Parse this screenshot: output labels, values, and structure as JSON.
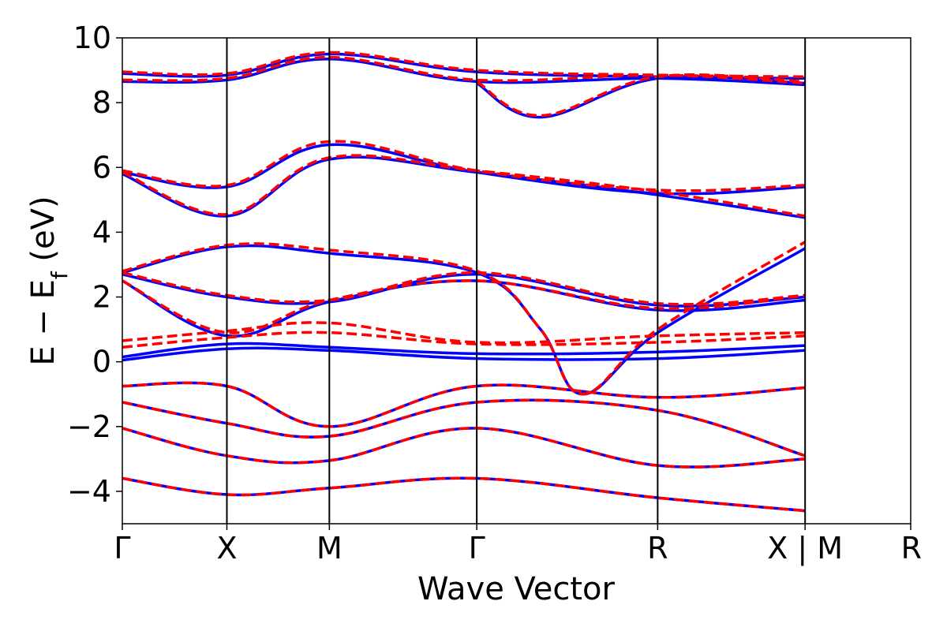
{
  "chart_data": {
    "type": "line",
    "xlabel": "Wave Vector",
    "ylabel_main": "E − E",
    "ylabel_sub": "f",
    "ylabel_unit": " (eV)",
    "ylim": [
      -5,
      10
    ],
    "yticks": [
      {
        "v": -4,
        "label": "−4"
      },
      {
        "v": -2,
        "label": "−2"
      },
      {
        "v": 0,
        "label": "0"
      },
      {
        "v": 2,
        "label": "2"
      },
      {
        "v": 4,
        "label": "4"
      },
      {
        "v": 6,
        "label": "6"
      },
      {
        "v": 8,
        "label": "8"
      },
      {
        "v": 10,
        "label": "10"
      }
    ],
    "xlim": [
      0,
      7.54
    ],
    "kpoints": [
      {
        "x": 0,
        "label": "Γ"
      },
      {
        "x": 1.0,
        "label": "X"
      },
      {
        "x": 1.98,
        "label": "M"
      },
      {
        "x": 3.39,
        "label": "Γ"
      },
      {
        "x": 5.12,
        "label": "R"
      },
      {
        "x": 6.53,
        "label": "X | M"
      },
      {
        "x": 7.54,
        "label": "R"
      }
    ],
    "segment_breaks": [
      6.53
    ],
    "grid": false,
    "legend": "none",
    "series": [
      {
        "color": "#0000ff",
        "style": "solid",
        "bands": [
          [
            [
              0,
              -0.75
            ],
            [
              1.0,
              -0.75
            ],
            [
              1.98,
              -2.0
            ],
            [
              3.39,
              -0.75
            ],
            [
              5.12,
              -1.1
            ],
            [
              6.53,
              -0.8
            ]
          ],
          [
            [
              0,
              -1.25
            ],
            [
              1.0,
              -1.9
            ],
            [
              1.98,
              -2.3
            ],
            [
              3.39,
              -1.25
            ],
            [
              5.12,
              -1.5
            ],
            [
              6.53,
              -2.9
            ]
          ],
          [
            [
              0,
              -2.05
            ],
            [
              1.0,
              -2.9
            ],
            [
              1.98,
              -3.05
            ],
            [
              3.39,
              -2.05
            ],
            [
              5.12,
              -3.2
            ],
            [
              6.53,
              -3.0
            ]
          ],
          [
            [
              0,
              -3.6
            ],
            [
              1.0,
              -4.1
            ],
            [
              1.98,
              -3.9
            ],
            [
              3.39,
              -3.6
            ],
            [
              5.12,
              -4.2
            ],
            [
              6.53,
              -4.6
            ]
          ],
          [
            [
              0,
              0.05
            ],
            [
              1.0,
              0.4
            ],
            [
              1.98,
              0.35
            ],
            [
              3.39,
              0.1
            ],
            [
              5.12,
              0.1
            ],
            [
              6.53,
              0.35
            ]
          ],
          [
            [
              0,
              0.15
            ],
            [
              1.0,
              0.55
            ],
            [
              1.98,
              0.45
            ],
            [
              3.39,
              0.25
            ],
            [
              5.12,
              0.3
            ],
            [
              6.53,
              0.5
            ]
          ],
          [
            [
              0,
              2.5
            ],
            [
              1.0,
              0.8
            ],
            [
              1.98,
              1.85
            ],
            [
              3.39,
              2.5
            ],
            [
              5.12,
              1.6
            ],
            [
              6.53,
              1.9
            ]
          ],
          [
            [
              0,
              2.7
            ],
            [
              1.0,
              2.0
            ],
            [
              1.98,
              1.85
            ],
            [
              3.39,
              2.7
            ],
            [
              5.12,
              1.75
            ],
            [
              6.53,
              2.0
            ]
          ],
          [
            [
              0,
              2.75
            ],
            [
              1.0,
              3.55
            ],
            [
              1.98,
              3.35
            ],
            [
              3.39,
              2.75
            ],
            [
              4.0,
              1.0
            ],
            [
              4.4,
              -1.0
            ],
            [
              5.12,
              0.9
            ],
            [
              6.53,
              3.5
            ]
          ],
          [
            [
              0,
              5.8
            ],
            [
              1.0,
              4.5
            ],
            [
              1.98,
              6.25
            ],
            [
              3.39,
              5.85
            ],
            [
              5.12,
              5.15
            ],
            [
              6.53,
              4.45
            ]
          ],
          [
            [
              0,
              5.85
            ],
            [
              1.0,
              5.4
            ],
            [
              1.98,
              6.7
            ],
            [
              3.39,
              5.85
            ],
            [
              5.12,
              5.2
            ],
            [
              6.53,
              5.4
            ]
          ],
          [
            [
              0,
              8.65
            ],
            [
              1.0,
              8.7
            ],
            [
              1.98,
              9.35
            ],
            [
              3.39,
              8.65
            ],
            [
              5.12,
              8.75
            ],
            [
              6.53,
              8.55
            ]
          ],
          [
            [
              0,
              8.9
            ],
            [
              1.0,
              8.85
            ],
            [
              1.98,
              9.5
            ],
            [
              3.39,
              8.95
            ],
            [
              5.12,
              8.8
            ],
            [
              6.53,
              8.75
            ]
          ],
          [
            [
              3.39,
              8.6
            ],
            [
              4.0,
              7.55
            ],
            [
              5.12,
              8.75
            ],
            [
              6.53,
              8.6
            ]
          ]
        ]
      },
      {
        "color": "#ff0000",
        "style": "dashed",
        "bands": [
          [
            [
              0,
              -0.75
            ],
            [
              1.0,
              -0.75
            ],
            [
              1.98,
              -2.0
            ],
            [
              3.39,
              -0.75
            ],
            [
              5.12,
              -1.1
            ],
            [
              6.53,
              -0.8
            ]
          ],
          [
            [
              0,
              -1.25
            ],
            [
              1.0,
              -1.9
            ],
            [
              1.98,
              -2.3
            ],
            [
              3.39,
              -1.25
            ],
            [
              5.12,
              -1.5
            ],
            [
              6.53,
              -2.9
            ]
          ],
          [
            [
              0,
              -2.05
            ],
            [
              1.0,
              -2.9
            ],
            [
              1.98,
              -3.05
            ],
            [
              3.39,
              -2.05
            ],
            [
              5.12,
              -3.2
            ],
            [
              6.53,
              -3.0
            ]
          ],
          [
            [
              0,
              -3.6
            ],
            [
              1.0,
              -4.1
            ],
            [
              1.98,
              -3.9
            ],
            [
              3.39,
              -3.6
            ],
            [
              5.12,
              -4.2
            ],
            [
              6.53,
              -4.6
            ]
          ],
          [
            [
              0,
              0.45
            ],
            [
              1.0,
              0.75
            ],
            [
              1.98,
              0.9
            ],
            [
              3.39,
              0.55
            ],
            [
              5.12,
              0.6
            ],
            [
              6.53,
              0.8
            ]
          ],
          [
            [
              0,
              0.65
            ],
            [
              1.0,
              0.95
            ],
            [
              1.98,
              1.2
            ],
            [
              3.39,
              0.6
            ],
            [
              5.12,
              0.8
            ],
            [
              6.53,
              0.9
            ]
          ],
          [
            [
              0,
              2.5
            ],
            [
              1.0,
              0.9
            ],
            [
              1.98,
              1.9
            ],
            [
              3.39,
              2.5
            ],
            [
              5.12,
              1.65
            ],
            [
              6.53,
              2.05
            ]
          ],
          [
            [
              0,
              2.75
            ],
            [
              1.0,
              2.05
            ],
            [
              1.98,
              1.9
            ],
            [
              3.39,
              2.75
            ],
            [
              5.12,
              1.8
            ],
            [
              6.53,
              2.05
            ]
          ],
          [
            [
              0,
              2.8
            ],
            [
              1.0,
              3.6
            ],
            [
              1.98,
              3.45
            ],
            [
              3.39,
              2.8
            ],
            [
              4.0,
              1.0
            ],
            [
              4.4,
              -1.0
            ],
            [
              5.12,
              1.0
            ],
            [
              6.53,
              3.7
            ]
          ],
          [
            [
              0,
              5.85
            ],
            [
              1.0,
              4.55
            ],
            [
              1.98,
              6.3
            ],
            [
              3.39,
              5.9
            ],
            [
              5.12,
              5.25
            ],
            [
              6.53,
              4.5
            ]
          ],
          [
            [
              0,
              5.9
            ],
            [
              1.0,
              5.45
            ],
            [
              1.98,
              6.8
            ],
            [
              3.39,
              5.9
            ],
            [
              5.12,
              5.3
            ],
            [
              6.53,
              5.45
            ]
          ],
          [
            [
              0,
              8.7
            ],
            [
              1.0,
              8.75
            ],
            [
              1.98,
              9.4
            ],
            [
              3.39,
              8.7
            ],
            [
              5.12,
              8.85
            ],
            [
              6.53,
              8.6
            ]
          ],
          [
            [
              0,
              8.95
            ],
            [
              1.0,
              8.9
            ],
            [
              1.98,
              9.55
            ],
            [
              3.39,
              9.0
            ],
            [
              5.12,
              8.85
            ],
            [
              6.53,
              8.8
            ]
          ],
          [
            [
              3.39,
              8.65
            ],
            [
              4.0,
              7.6
            ],
            [
              5.12,
              8.8
            ],
            [
              6.53,
              8.65
            ]
          ]
        ]
      }
    ],
    "colors": {
      "axes": "#000000"
    }
  }
}
